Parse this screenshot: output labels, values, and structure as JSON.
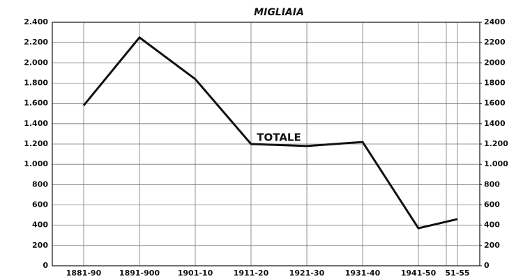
{
  "chart_data": {
    "type": "line",
    "title": "MIGLIAIA",
    "annotations": [
      "TOTALE"
    ],
    "categories": [
      "1881-90",
      "1891-900",
      "1901-10",
      "1911-20",
      "1921-30",
      "1931-40",
      "1941-50",
      "51-55"
    ],
    "series": [
      {
        "name": "TOTALE",
        "color": "#111111",
        "axis": "y",
        "values": [
          1580,
          2250,
          1840,
          1200,
          1180,
          1220,
          370,
          460
        ]
      }
    ],
    "ylim": [
      0,
      2400
    ],
    "yticks": [
      0,
      200,
      400,
      600,
      800,
      {
        "value": 1000,
        "label": "1.000"
      },
      {
        "value": 1200,
        "label": "1.200"
      },
      {
        "value": 1400,
        "label": "1.400"
      },
      {
        "value": 1600,
        "label": "1.600"
      },
      {
        "value": 1800,
        "label": "1.800"
      },
      {
        "value": 2000,
        "label": "2.000"
      },
      {
        "value": 2200,
        "label": "2.200"
      },
      {
        "value": 2400,
        "label": "2.400"
      }
    ],
    "y2lim": [
      0,
      2400
    ],
    "y2ticks": [
      0,
      200,
      400,
      600,
      800,
      {
        "value": 1000,
        "label": "1.000"
      },
      {
        "value": 1200,
        "label": "1.200"
      },
      1400,
      1600,
      1800,
      2000,
      2200,
      2400
    ],
    "grid": true
  }
}
